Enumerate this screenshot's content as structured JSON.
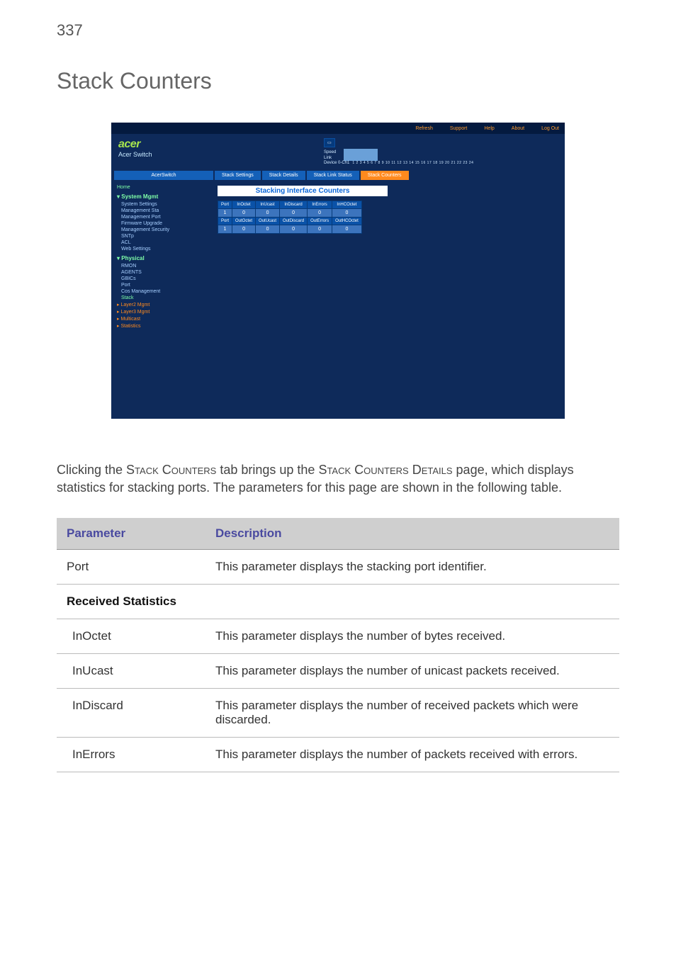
{
  "page_number": "337",
  "section_title": "Stack Counters",
  "screenshot": {
    "topbar": [
      "Refresh",
      "Support",
      "Help",
      "About",
      "Log Out"
    ],
    "brand_logo": "acer",
    "brand_sub": "Acer Switch",
    "speed_label": "Speed",
    "link_label": "Link",
    "device_label": "Device 0-Ch1",
    "port_count": 24,
    "tab_section_label": "AcerSwitch",
    "tabs": {
      "settings": "Stack Settings",
      "details": "Stack Details",
      "link_status": "Stack Link Status",
      "counters": "Stack Counters"
    },
    "nav_home": "Home",
    "nav": {
      "groups": [
        {
          "title": "System Mgmt",
          "items": [
            "System Settings",
            "Management Sta",
            "Management Port",
            "Firmware Upgrade",
            "Management Security",
            "SNTp",
            "ACL",
            "Web Settings"
          ]
        },
        {
          "title": "Physical",
          "items": [
            "RMON",
            "AGENTS",
            "GBICs",
            "Port",
            "Cos Management",
            "Stack"
          ],
          "selected": "Stack"
        }
      ],
      "top_nodes": [
        "Layer2 Mgmt",
        "Layer3 Mgmt",
        "Multicast",
        "Statistics"
      ]
    },
    "main_title": "Stacking Interface Counters",
    "counter_table": {
      "head_in": [
        "Port",
        "InOctet",
        "InUcast",
        "InDiscard",
        "InErrors",
        "InHCOctet"
      ],
      "row_in": [
        "1",
        "0",
        "0",
        "0",
        "0",
        "0"
      ],
      "head_out": [
        "Port",
        "OutOctet",
        "OutUcast",
        "OutDiscard",
        "OutErrors",
        "OutHCOctet"
      ],
      "row_out": [
        "1",
        "0",
        "0",
        "0",
        "0",
        "0"
      ]
    }
  },
  "body_text": {
    "p1a": "Clicking the ",
    "p1b": "Stack Counters",
    "p1c": " tab brings up the ",
    "p1d": "Stack Counters Details",
    "p1e": " page, which displays statistics for stacking ports. The parameters for this page are shown in the following table."
  },
  "param_table": {
    "head_param": "Parameter",
    "head_desc": "Description",
    "rows": [
      {
        "name": "Port",
        "desc": "This parameter displays the stacking port identifier.",
        "section": null,
        "plain": true
      },
      {
        "section": "Received Statistics"
      },
      {
        "name": "InOctet",
        "desc": "This parameter displays the number of bytes received."
      },
      {
        "name": "InUcast",
        "desc": "This parameter displays the number of unicast packets received."
      },
      {
        "name": "InDiscard",
        "desc": "This parameter displays the number of received packets which were discarded."
      },
      {
        "name": "InErrors",
        "desc": "This parameter displays the number of packets received with errors."
      }
    ]
  }
}
